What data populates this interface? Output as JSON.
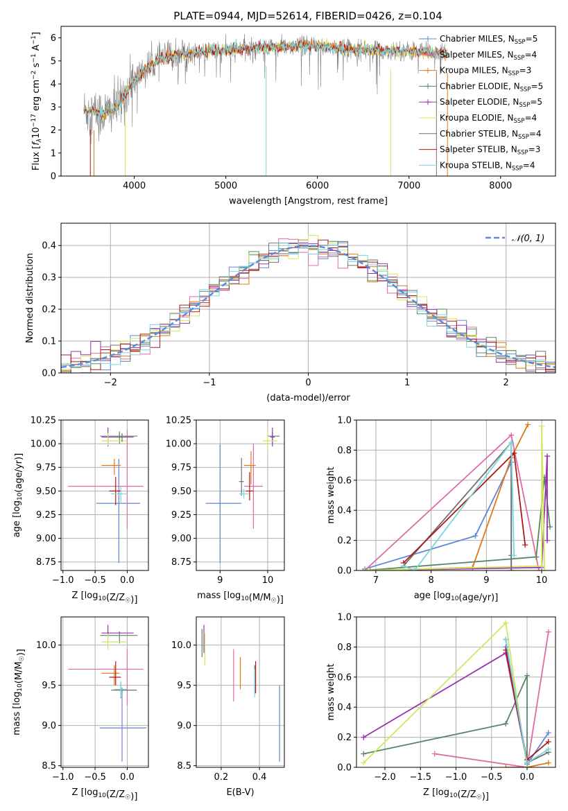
{
  "figure_title": "PLATE=0944, MJD=52614, FIBERID=0426, z=0.104",
  "colors": {
    "Chabrier MILES": "#5e86d6",
    "Salpeter MILES": "#e06aa8",
    "Kroupa MILES": "#e07818",
    "Chabrier ELODIE": "#5b8464",
    "Salpeter ELODIE": "#9a30b0",
    "Kroupa ELODIE": "#cfe85a",
    "Chabrier STELIB": "#6e6e6e",
    "Salpeter STELIB": "#b01818",
    "Kroupa STELIB": "#7ad6df",
    "normal_curve": "#5b8bd6"
  },
  "chart_data": [
    {
      "id": "spectrum",
      "type": "line",
      "title": "PLATE=0944, MJD=52614, FIBERID=0426, z=0.104",
      "xlabel": "wavelength [Angstrom, rest frame]",
      "ylabel": "Flux [f_λ 10^-17 erg cm^-2 s^-1 A^-1]",
      "xlim": [
        3200,
        8600
      ],
      "ylim": [
        0,
        6.5
      ],
      "xticks": [
        4000,
        5000,
        6000,
        7000,
        8000
      ],
      "yticks": [
        0,
        1,
        2,
        3,
        4,
        5,
        6
      ],
      "grid": false,
      "legend_position": "right",
      "legend": [
        {
          "label": "Chabrier MILES, N",
          "sub": "SSP",
          "eq": "=5",
          "series": "Chabrier MILES",
          "marker": "+"
        },
        {
          "label": "Salpeter MILES, N",
          "sub": "SSP",
          "eq": "=4",
          "series": "Salpeter MILES",
          "marker": "+"
        },
        {
          "label": "Kroupa MILES, N",
          "sub": "SSP",
          "eq": "=3",
          "series": "Kroupa MILES",
          "marker": "+"
        },
        {
          "label": "Chabrier ELODIE, N",
          "sub": "SSP",
          "eq": "=5",
          "series": "Chabrier ELODIE",
          "marker": "+"
        },
        {
          "label": "Salpeter ELODIE, N",
          "sub": "SSP",
          "eq": "=5",
          "series": "Salpeter ELODIE",
          "marker": "+"
        },
        {
          "label": "Kroupa ELODIE, N",
          "sub": "SSP",
          "eq": "=4",
          "series": "Kroupa ELODIE",
          "marker": ""
        },
        {
          "label": "Chabrier STELIB, N",
          "sub": "SSP",
          "eq": "=4",
          "series": "Chabrier STELIB",
          "marker": ""
        },
        {
          "label": "Salpeter STELIB, N",
          "sub": "SSP",
          "eq": "=3",
          "series": "Salpeter STELIB",
          "marker": ""
        },
        {
          "label": "Kroupa STELIB, N",
          "sub": "SSP",
          "eq": "=4",
          "series": "Kroupa STELIB",
          "marker": ""
        }
      ],
      "continuum": {
        "x": [
          3450,
          3550,
          3650,
          3750,
          3850,
          3950,
          4050,
          4150,
          4300,
          4500,
          4700,
          4900,
          5100,
          5300,
          5500,
          5700,
          5900,
          6100,
          6300,
          6500,
          6700,
          6900,
          7100,
          7300,
          7420
        ],
        "y": [
          2.85,
          2.8,
          2.7,
          2.85,
          3.2,
          3.9,
          4.4,
          4.7,
          5.1,
          5.3,
          5.35,
          5.45,
          5.5,
          5.55,
          5.6,
          5.6,
          5.65,
          5.6,
          5.55,
          5.5,
          5.45,
          5.45,
          5.4,
          5.35,
          5.3
        ]
      }
    },
    {
      "id": "residuals",
      "type": "histogram",
      "xlabel": "(data-model)/error",
      "ylabel": "Normed distribution",
      "xlim": [
        -2.5,
        2.5
      ],
      "ylim": [
        0,
        0.47
      ],
      "xticks": [
        -2,
        -1,
        0,
        1,
        2
      ],
      "yticks": [
        0.0,
        0.1,
        0.2,
        0.3,
        0.4
      ],
      "grid": true,
      "legend_position": "top-right",
      "legend": [
        {
          "label": "𝒩(0, 1)",
          "style": "dashed"
        }
      ],
      "bin_width": 0.1
    },
    {
      "id": "age-Z",
      "type": "errorbar",
      "xlabel": "Z [log10(Z/Z☉)]",
      "ylabel": "age  [log10(age/yr)]",
      "xlim": [
        -1.03,
        0.33
      ],
      "ylim": [
        8.66,
        10.25
      ],
      "xticks": [
        -1.0,
        -0.5,
        0.0
      ],
      "yticks": [
        8.75,
        9.0,
        9.25,
        9.5,
        9.75,
        10.0,
        10.25
      ],
      "grid": true,
      "points": [
        {
          "series": "Chabrier MILES",
          "x": -0.13,
          "xerr": [
            0.35,
            0.33
          ],
          "y": 9.37,
          "yerr": [
            0.63,
            0.47
          ]
        },
        {
          "series": "Salpeter MILES",
          "x": 0.0,
          "xerr": [
            0.92,
            0.25
          ],
          "y": 9.55,
          "yerr": [
            0.45,
            0.6
          ]
        },
        {
          "series": "Kroupa MILES",
          "x": -0.2,
          "xerr": [
            0.2,
            0.1
          ],
          "y": 9.77,
          "yerr": [
            0.1,
            0.07
          ]
        },
        {
          "series": "Chabrier ELODIE",
          "x": -0.12,
          "xerr": [
            0.3,
            0.28
          ],
          "y": 10.08,
          "yerr": [
            0.08,
            0.05
          ]
        },
        {
          "series": "Salpeter ELODIE",
          "x": -0.3,
          "xerr": [
            0.1,
            0.4
          ],
          "y": 10.07,
          "yerr": [
            0.1,
            0.1
          ]
        },
        {
          "series": "Kroupa ELODIE",
          "x": -0.3,
          "xerr": [
            0.1,
            0.3
          ],
          "y": 10.03,
          "yerr": [
            0.05,
            0.08
          ]
        },
        {
          "series": "Chabrier STELIB",
          "x": -0.08,
          "xerr": [
            0.1,
            0.05
          ],
          "y": 10.07,
          "yerr": [
            0.05,
            0.04
          ]
        },
        {
          "series": "Salpeter STELIB",
          "x": -0.18,
          "xerr": [
            0.1,
            0.08
          ],
          "y": 9.5,
          "yerr": [
            0.15,
            0.15
          ]
        },
        {
          "series": "Kroupa STELIB",
          "x": -0.1,
          "xerr": [
            0.15,
            0.1
          ],
          "y": 9.47,
          "yerr": [
            0.1,
            0.08
          ]
        }
      ]
    },
    {
      "id": "age-mass",
      "type": "errorbar",
      "xlabel": "mass [log10(M/M☉)]",
      "ylabel": "",
      "xlim": [
        8.5,
        10.35
      ],
      "ylim": [
        8.66,
        10.25
      ],
      "xticks": [
        9,
        10
      ],
      "yticks": [
        8.75,
        9.0,
        9.25,
        9.5,
        9.75,
        10.0,
        10.25
      ],
      "grid": true,
      "points": [
        {
          "series": "Chabrier MILES",
          "x": 9.0,
          "xerr": [
            0.3,
            0.45
          ],
          "y": 9.37,
          "yerr": [
            0.63,
            0.62
          ]
        },
        {
          "series": "Salpeter MILES",
          "x": 9.7,
          "xerr": [
            0.2,
            0.2
          ],
          "y": 9.55,
          "yerr": [
            0.45,
            0.45
          ]
        },
        {
          "series": "Kroupa MILES",
          "x": 9.65,
          "xerr": [
            0.15,
            0.1
          ],
          "y": 9.77,
          "yerr": [
            0.2,
            0.15
          ]
        },
        {
          "series": "Chabrier ELODIE",
          "x": 10.1,
          "xerr": [
            0.1,
            0.15
          ],
          "y": 10.08,
          "yerr": [
            0.05,
            0.05
          ]
        },
        {
          "series": "Salpeter ELODIE",
          "x": 10.1,
          "xerr": [
            0.05,
            0.05
          ],
          "y": 10.07,
          "yerr": [
            0.1,
            0.1
          ]
        },
        {
          "series": "Kroupa ELODIE",
          "x": 10.0,
          "xerr": [
            0.1,
            0.2
          ],
          "y": 10.03,
          "yerr": [
            0.1,
            0.1
          ]
        },
        {
          "series": "Chabrier STELIB",
          "x": 9.45,
          "xerr": [
            0.05,
            0.05
          ],
          "y": 9.6,
          "yerr": [
            0.15,
            0.25
          ]
        },
        {
          "series": "Salpeter STELIB",
          "x": 9.62,
          "xerr": [
            0.08,
            0.08
          ],
          "y": 9.5,
          "yerr": [
            0.1,
            0.2
          ]
        },
        {
          "series": "Kroupa STELIB",
          "x": 9.5,
          "xerr": [
            0.1,
            0.1
          ],
          "y": 9.47,
          "yerr": [
            0.05,
            0.05
          ]
        }
      ]
    },
    {
      "id": "weight-age",
      "type": "line",
      "xlabel": "age  [log10(age/yr)]",
      "ylabel": "mass weight",
      "xlim": [
        6.65,
        10.25
      ],
      "ylim": [
        0,
        1.0
      ],
      "xticks": [
        7,
        8,
        9,
        10
      ],
      "yticks": [
        0.0,
        0.2,
        0.4,
        0.6,
        0.8,
        1.0
      ],
      "grid": true,
      "series": [
        {
          "name": "Chabrier MILES",
          "x": [
            6.8,
            8.8,
            9.45,
            9.45
          ],
          "y": [
            0.01,
            0.23,
            0.72,
            0.0
          ]
        },
        {
          "name": "Salpeter MILES",
          "x": [
            6.8,
            9.45,
            9.9,
            9.95
          ],
          "y": [
            0.0,
            0.9,
            0.09,
            0.0
          ]
        },
        {
          "name": "Kroupa MILES",
          "x": [
            6.9,
            8.75,
            9.45,
            9.75
          ],
          "y": [
            0.0,
            0.02,
            0.75,
            0.97
          ]
        },
        {
          "name": "Chabrier ELODIE",
          "x": [
            6.8,
            9.9,
            10.05,
            10.15
          ],
          "y": [
            0.0,
            0.09,
            0.62,
            0.29
          ]
        },
        {
          "name": "Salpeter ELODIE",
          "x": [
            6.8,
            10.0,
            10.1,
            10.1
          ],
          "y": [
            0.0,
            0.02,
            0.76,
            0.2
          ]
        },
        {
          "name": "Kroupa ELODIE",
          "x": [
            6.8,
            10.0,
            10.0,
            10.05
          ],
          "y": [
            0.0,
            0.03,
            0.96,
            0.0
          ]
        },
        {
          "name": "Chabrier STELIB",
          "x": [
            7.5,
            9.45,
            9.45,
            9.45
          ],
          "y": [
            0.03,
            0.85,
            0.1,
            0.0
          ]
        },
        {
          "name": "Salpeter STELIB",
          "x": [
            7.5,
            9.5,
            9.7
          ],
          "y": [
            0.05,
            0.78,
            0.17
          ]
        },
        {
          "name": "Kroupa STELIB",
          "x": [
            7.5,
            7.7,
            9.45,
            9.5
          ],
          "y": [
            0.03,
            0.0,
            0.85,
            0.1
          ]
        }
      ]
    },
    {
      "id": "mass-Z",
      "type": "errorbar",
      "xlabel": "Z [log10(Z/Z☉)]",
      "ylabel": "mass [log10(M/M☉)]",
      "xlim": [
        -1.03,
        0.33
      ],
      "ylim": [
        8.48,
        10.35
      ],
      "xticks": [
        -1.0,
        -0.5,
        0.0
      ],
      "yticks": [
        8.5,
        9.0,
        9.5,
        10.0
      ],
      "grid": true,
      "points": [
        {
          "series": "Chabrier MILES",
          "x": -0.08,
          "xerr": [
            0.35,
            0.38
          ],
          "y": 8.97,
          "yerr": [
            0.42,
            0.5
          ]
        },
        {
          "series": "Salpeter MILES",
          "x": 0.0,
          "xerr": [
            0.92,
            0.25
          ],
          "y": 9.7,
          "yerr": [
            0.45,
            0.25
          ]
        },
        {
          "series": "Kroupa MILES",
          "x": -0.2,
          "xerr": [
            0.2,
            0.08
          ],
          "y": 9.65,
          "yerr": [
            0.15,
            0.1
          ]
        },
        {
          "series": "Chabrier ELODIE",
          "x": -0.12,
          "xerr": [
            0.3,
            0.28
          ],
          "y": 10.12,
          "yerr": [
            0.1,
            0.05
          ]
        },
        {
          "series": "Salpeter ELODIE",
          "x": -0.3,
          "xerr": [
            0.1,
            0.4
          ],
          "y": 10.15,
          "yerr": [
            0.05,
            0.1
          ]
        },
        {
          "series": "Kroupa ELODIE",
          "x": -0.3,
          "xerr": [
            0.1,
            0.3
          ],
          "y": 10.04,
          "yerr": [
            0.1,
            0.1
          ]
        },
        {
          "series": "Chabrier STELIB",
          "x": -0.1,
          "xerr": [
            0.15,
            0.25
          ],
          "y": 9.44,
          "yerr": [
            0.1,
            0.1
          ]
        },
        {
          "series": "Salpeter STELIB",
          "x": -0.18,
          "xerr": [
            0.1,
            0.08
          ],
          "y": 9.6,
          "yerr": [
            0.1,
            0.2
          ]
        },
        {
          "series": "Kroupa STELIB",
          "x": -0.1,
          "xerr": [
            0.1,
            0.1
          ],
          "y": 9.45,
          "yerr": [
            0.1,
            0.1
          ]
        }
      ]
    },
    {
      "id": "mass-EBV",
      "type": "errorbar",
      "xlabel": "E(B-V)",
      "ylabel": "",
      "xlim": [
        0.07,
        0.53
      ],
      "ylim": [
        8.48,
        10.35
      ],
      "xticks": [
        0.2,
        0.4
      ],
      "yticks": [
        8.5,
        9.0,
        9.5,
        10.0
      ],
      "grid": true,
      "points": [
        {
          "series": "Chabrier MILES",
          "x": 0.505,
          "y": 9.0,
          "yerr": [
            0.45,
            0.5
          ]
        },
        {
          "series": "Salpeter MILES",
          "x": 0.265,
          "y": 9.6,
          "yerr": [
            0.3,
            0.35
          ]
        },
        {
          "series": "Kroupa MILES",
          "x": 0.3,
          "y": 9.65,
          "yerr": [
            0.2,
            0.2
          ]
        },
        {
          "series": "Chabrier ELODIE",
          "x": 0.1,
          "y": 10.05,
          "yerr": [
            0.2,
            0.15
          ]
        },
        {
          "series": "Salpeter ELODIE",
          "x": 0.11,
          "y": 10.1,
          "yerr": [
            0.2,
            0.15
          ]
        },
        {
          "series": "Kroupa ELODIE",
          "x": 0.115,
          "y": 9.95,
          "yerr": [
            0.2,
            0.2
          ]
        },
        {
          "series": "Chabrier STELIB",
          "x": 0.375,
          "y": 9.55,
          "yerr": [
            0.15,
            0.2
          ]
        },
        {
          "series": "Salpeter STELIB",
          "x": 0.38,
          "y": 9.6,
          "yerr": [
            0.2,
            0.2
          ]
        },
        {
          "series": "Kroupa STELIB",
          "x": 0.375,
          "y": 9.5,
          "yerr": [
            0.15,
            0.2
          ]
        }
      ]
    },
    {
      "id": "weight-Z",
      "type": "line",
      "xlabel": "Z [log10(Z/Z☉)]",
      "ylabel": "mass weight",
      "xlim": [
        -2.4,
        0.4
      ],
      "ylim": [
        0,
        1.0
      ],
      "xticks": [
        -2.0,
        -1.5,
        -1.0,
        -0.5,
        0.0
      ],
      "yticks": [
        0.0,
        0.2,
        0.4,
        0.6,
        0.8,
        1.0
      ],
      "grid": true,
      "series": [
        {
          "name": "Chabrier MILES",
          "x": [
            -0.3,
            0.0,
            0.3
          ],
          "y": [
            0.8,
            0.02,
            0.23
          ]
        },
        {
          "name": "Salpeter MILES",
          "x": [
            -1.3,
            0.0,
            0.3
          ],
          "y": [
            0.09,
            0.0,
            0.9
          ]
        },
        {
          "name": "Kroupa MILES",
          "x": [
            -0.3,
            0.0,
            0.3
          ],
          "y": [
            0.0,
            0.0,
            0.03
          ]
        },
        {
          "name": "Chabrier ELODIE",
          "x": [
            -2.3,
            -0.3,
            0.0,
            0.0
          ],
          "y": [
            0.09,
            0.29,
            0.61,
            0.0
          ]
        },
        {
          "name": "Salpeter ELODIE",
          "x": [
            -2.3,
            -0.3,
            0.0,
            0.0
          ],
          "y": [
            0.2,
            0.76,
            0.03,
            0.0
          ]
        },
        {
          "name": "Kroupa ELODIE",
          "x": [
            -2.3,
            -0.3,
            0.0
          ],
          "y": [
            0.03,
            0.96,
            0.0
          ]
        },
        {
          "name": "Chabrier STELIB",
          "x": [
            -0.3,
            0.0,
            0.3
          ],
          "y": [
            0.85,
            0.03,
            0.1
          ]
        },
        {
          "name": "Salpeter STELIB",
          "x": [
            -0.3,
            0.0,
            0.3
          ],
          "y": [
            0.78,
            0.05,
            0.17
          ]
        },
        {
          "name": "Kroupa STELIB",
          "x": [
            -0.3,
            0.0,
            0.3
          ],
          "y": [
            0.85,
            0.03,
            0.12
          ]
        }
      ]
    }
  ]
}
